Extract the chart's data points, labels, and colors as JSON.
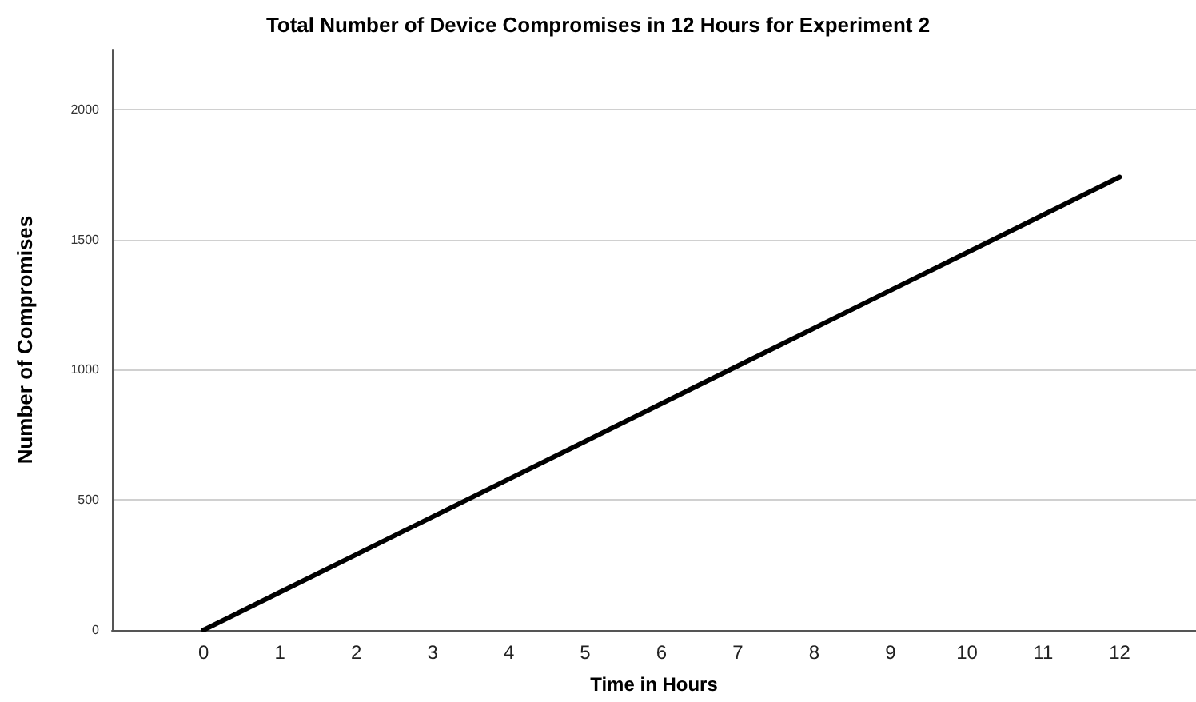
{
  "chart_data": {
    "type": "line",
    "title": "Total Number of Device Compromises in 12 Hours for Experiment 2",
    "xlabel": "Time in Hours",
    "ylabel": "Number of Compromises",
    "x": [
      0,
      1,
      2,
      3,
      4,
      5,
      6,
      7,
      8,
      9,
      10,
      11,
      12
    ],
    "series": [
      {
        "color": "#000000",
        "values": [
          0,
          145,
          290,
          435,
          580,
          725,
          870,
          1015,
          1160,
          1305,
          1450,
          1595,
          1740
        ]
      }
    ],
    "xlim": [
      -1.2,
      13
    ],
    "xticks": [
      0,
      1,
      2,
      3,
      4,
      5,
      6,
      7,
      8,
      9,
      10,
      11,
      12
    ],
    "ylim": [
      0,
      2230
    ],
    "yticks": [
      0,
      500,
      1000,
      1500,
      2000
    ],
    "grid": "y",
    "marker": "none",
    "line_style": "solid"
  }
}
